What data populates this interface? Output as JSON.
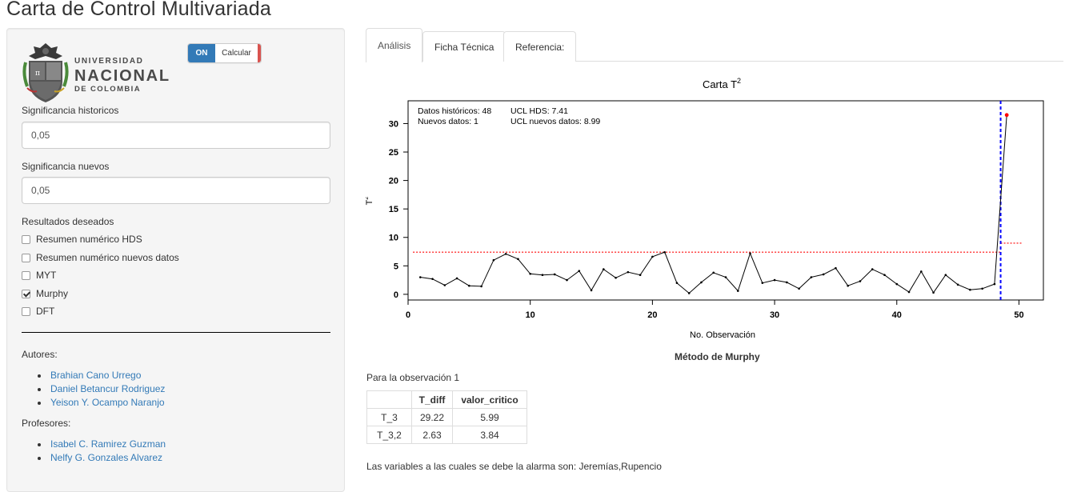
{
  "app": {
    "title": "Carta de Control Multivariada"
  },
  "sidebar": {
    "logo": {
      "line1": "UNIVERSIDAD",
      "line2": "NACIONAL",
      "line3": "DE COLOMBIA"
    },
    "toggle": {
      "on_label": "ON",
      "off_label": "Calcular",
      "off_accent": "#d9534f",
      "on_color": "#337ab7"
    },
    "sig_hist": {
      "label": "Significancia historicos",
      "value": "0,05"
    },
    "sig_new": {
      "label": "Significancia nuevos",
      "value": "0,05"
    },
    "results": {
      "label": "Resultados deseados",
      "options": [
        {
          "label": "Resumen numérico HDS",
          "checked": false
        },
        {
          "label": "Resumen numérico nuevos datos",
          "checked": false
        },
        {
          "label": "MYT",
          "checked": false
        },
        {
          "label": "Murphy",
          "checked": true
        },
        {
          "label": "DFT",
          "checked": false
        }
      ]
    },
    "authors": {
      "label": "Autores:",
      "names": [
        "Brahian Cano Urrego",
        "Daniel Betancur Rodriguez",
        "Yeison Y. Ocampo Naranjo"
      ]
    },
    "professors": {
      "label": "Profesores:",
      "names": [
        "Isabel C. Ramirez Guzman",
        "Nelfy G. Gonzales Alvarez"
      ]
    }
  },
  "tabs": [
    "Análisis",
    "Ficha Técnica",
    "Referencia:"
  ],
  "chart_data": {
    "type": "line",
    "title": "Carta T",
    "title_superscript": "2",
    "xlabel": "No. Observación",
    "ylabel": "T",
    "ylabel_superscript": "2",
    "xlim": [
      0,
      52
    ],
    "ylim": [
      -1,
      34
    ],
    "xticks": [
      0,
      10,
      20,
      30,
      40,
      50
    ],
    "yticks": [
      0,
      5,
      10,
      15,
      20,
      25,
      30
    ],
    "annotations": {
      "hist_label": "Datos históricos:",
      "hist_value": "48",
      "new_label": "Nuevos datos:",
      "new_value": "1",
      "ucl_hds": "UCL HDS: 7.41",
      "ucl_new": "UCL nuevos datos: 8.99"
    },
    "ucl_hds": 7.41,
    "ucl_new": 8.99,
    "separator_x": 48.5,
    "series": [
      {
        "x": [
          1,
          2,
          3,
          4,
          5,
          6,
          7,
          8,
          9,
          10,
          11,
          12,
          13,
          14,
          15,
          16,
          17,
          18,
          19,
          20,
          21,
          22,
          23,
          24,
          25,
          26,
          27,
          28,
          29,
          30,
          31,
          32,
          33,
          34,
          35,
          36,
          37,
          38,
          39,
          40,
          41,
          42,
          43,
          44,
          45,
          46,
          47,
          48,
          49
        ],
        "values": [
          3.0,
          2.7,
          1.6,
          2.8,
          1.5,
          1.4,
          6.0,
          7.1,
          6.2,
          3.6,
          3.4,
          3.5,
          2.5,
          4.1,
          0.7,
          4.4,
          2.9,
          3.9,
          3.4,
          6.6,
          7.4,
          2.0,
          0.2,
          2.1,
          3.8,
          3.0,
          0.6,
          7.2,
          2.0,
          2.5,
          2.1,
          1.0,
          3.0,
          3.5,
          4.6,
          1.5,
          2.3,
          4.4,
          3.4,
          1.8,
          0.4,
          4.0,
          0.3,
          3.4,
          1.7,
          0.8,
          1.0,
          1.8,
          31.5
        ],
        "colors": {
          "line": "#000000",
          "out_point": "#ff0000",
          "ucl": "#ff0000",
          "separator": "#0000ff"
        }
      }
    ]
  },
  "murphy": {
    "title": "Método de Murphy",
    "observation_text": "Para la observación 1",
    "table": {
      "headers": [
        "",
        "T_diff",
        "valor_critico"
      ],
      "rows": [
        [
          "T_3",
          "29.22",
          "5.99"
        ],
        [
          "T_3,2",
          "2.63",
          "3.84"
        ]
      ]
    },
    "alarm_text": "Las variables a las cuales se debe la alarma son: Jeremías,Rupencio"
  }
}
